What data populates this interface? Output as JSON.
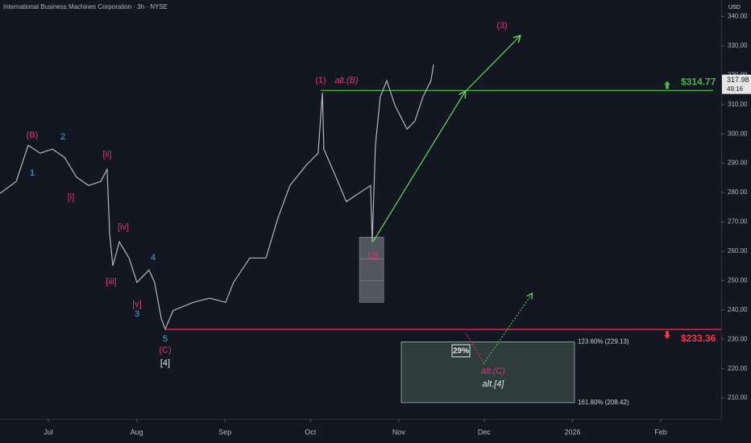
{
  "chart_data": {
    "type": "line",
    "title": "International Business Machines Corporation · 3h · NYSE",
    "currency": "USD",
    "color": "#b2b5be",
    "x": [
      13,
      18.7,
      22.9,
      27.1,
      31.4,
      35.6,
      39.9,
      44.1,
      48.4,
      50.6,
      51.5,
      52.6,
      54.9,
      58.3,
      61.1,
      65.3,
      67.3,
      69.6,
      71,
      73.8,
      80.9,
      86.6,
      92.2,
      95,
      100.7,
      106.4,
      110.6,
      114.8,
      120.5,
      124.7,
      126.2,
      126.7,
      130.4,
      134.6,
      138.9,
      143.1,
      143.7,
      144.8,
      146.5,
      148.8,
      151.6,
      155.9,
      158.7,
      161.5,
      164.3,
      165.2
    ],
    "values": [
      279.7,
      283.8,
      296.1,
      293.4,
      294.8,
      292,
      285.2,
      282.4,
      283.8,
      287.9,
      265.9,
      255,
      263.2,
      257.7,
      249.4,
      253.6,
      249.4,
      237.1,
      233.5,
      239.8,
      242.6,
      244,
      242.6,
      249.4,
      257.7,
      257.7,
      271.4,
      282.4,
      289.3,
      293.4,
      314,
      294.8,
      286.5,
      276.9,
      279.7,
      282.4,
      263.2,
      296.1,
      312.6,
      318.1,
      309.9,
      301.6,
      304.4,
      312.6,
      318.1,
      323.6
    ],
    "xlim": [
      13,
      266.2
    ],
    "ylim": [
      202.9,
      345.6
    ],
    "xticks": [
      {
        "value": 30,
        "label": "Jul"
      },
      {
        "value": 61,
        "label": "Aug"
      },
      {
        "value": 92,
        "label": "Sep"
      },
      {
        "value": 122,
        "label": "Oct"
      },
      {
        "value": 153,
        "label": "Nov"
      },
      {
        "value": 183,
        "label": "Dec"
      },
      {
        "value": 214,
        "label": "2026"
      },
      {
        "value": 245,
        "label": "Feb"
      }
    ],
    "yticks": [
      {
        "value": 210,
        "label": "210.00"
      },
      {
        "value": 220,
        "label": "220.00"
      },
      {
        "value": 230,
        "label": "230.00"
      },
      {
        "value": 240,
        "label": "240.00"
      },
      {
        "value": 250,
        "label": "250.00"
      },
      {
        "value": 260,
        "label": "260.00"
      },
      {
        "value": 270,
        "label": "270.00"
      },
      {
        "value": 280,
        "label": "280.00"
      },
      {
        "value": 290,
        "label": "290.00"
      },
      {
        "value": 300,
        "label": "300.00"
      },
      {
        "value": 310,
        "label": "310.00"
      },
      {
        "value": 320,
        "label": "320.00"
      },
      {
        "value": 330,
        "label": "330.00"
      },
      {
        "value": 340,
        "label": "340.00"
      }
    ],
    "last_price": 317.98,
    "countdown": "49:16",
    "levels": [
      {
        "value": 314.77,
        "label": "$314.77",
        "color": "#4caf50"
      },
      {
        "value": 233.36,
        "label": "$233.36",
        "color": "#f23645"
      }
    ],
    "target_zone": {
      "x": [
        153.9,
        214.7
      ],
      "ylim": [
        208.42,
        229.13
      ],
      "labels": [
        "161.80% (208.42)",
        "123.60% (229.13)"
      ]
    },
    "wave2_zone": {
      "x": [
        139.2,
        147.7
      ],
      "ylim": [
        242.6,
        264.8
      ]
    },
    "probability": "29%",
    "annotations": [
      {
        "text": "(B)",
        "color": "#e0347a"
      },
      {
        "text": "2",
        "color": "#29b6d8"
      },
      {
        "text": "1",
        "color": "#29b6d8"
      },
      {
        "text": "[ii]",
        "color": "#e0347a"
      },
      {
        "text": "[i]",
        "color": "#e0347a"
      },
      {
        "text": "[iv]",
        "color": "#e0347a"
      },
      {
        "text": "4",
        "color": "#29b6d8"
      },
      {
        "text": "[iii]",
        "color": "#e0347a"
      },
      {
        "text": "[v]",
        "color": "#e0347a"
      },
      {
        "text": "3",
        "color": "#29b6d8"
      },
      {
        "text": "5",
        "color": "#29b6d8"
      },
      {
        "text": "(C)",
        "color": "#e0347a"
      },
      {
        "text": "[4]",
        "color": "#e6e6e6"
      },
      {
        "text": "(1)",
        "color": "#e0347a"
      },
      {
        "text": "alt.(B)",
        "color": "#e0347a"
      },
      {
        "text": "(2)",
        "color": "#e0347a"
      },
      {
        "text": "(3)",
        "color": "#e0347a"
      },
      {
        "text": "alt.(C)",
        "color": "#e0347a"
      },
      {
        "text": "alt.[4]",
        "color": "#e6e6e6"
      }
    ]
  }
}
